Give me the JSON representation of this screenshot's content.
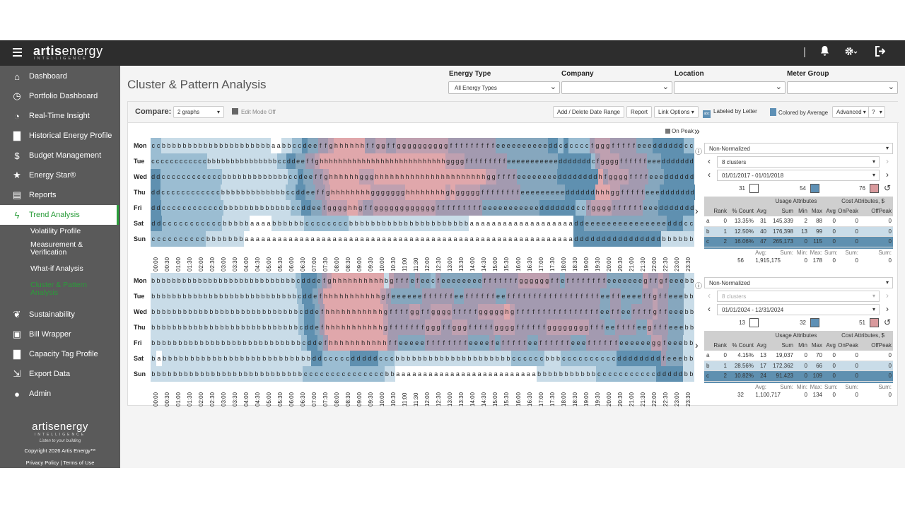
{
  "topbar": {
    "logo_bold": "artis",
    "logo_rest": "energy",
    "logo_sub": "INTELLIGENCE",
    "divider": "|",
    "bell_icon": "bell-icon",
    "gear_icon": "gear-icon",
    "logout_icon": "logout-icon"
  },
  "sidebar": {
    "items": [
      {
        "label": "Dashboard",
        "icon": "⌂"
      },
      {
        "label": "Portfolio Dashboard",
        "icon": "◷"
      },
      {
        "label": "Real-Time Insight",
        "icon": "◔"
      },
      {
        "label": "Historical Energy Profile",
        "icon": "▇"
      },
      {
        "label": "Budget Management",
        "icon": "$"
      },
      {
        "label": "Energy Star®",
        "icon": "★"
      },
      {
        "label": "Reports",
        "icon": "▤"
      },
      {
        "label": "Trend Analysis",
        "icon": "ϟ"
      }
    ],
    "sub_items": [
      "Volatility Profile",
      "Measurement & Verification",
      "What-if Analysis",
      "Cluster & Pattern Analysis"
    ],
    "items2": [
      {
        "label": "Sustainability",
        "icon": "❦"
      },
      {
        "label": "Bill Wrapper",
        "icon": "▣"
      },
      {
        "label": "Capacity Tag Profile",
        "icon": "▇"
      },
      {
        "label": "Export Data",
        "icon": "⇲"
      },
      {
        "label": "Admin",
        "icon": "●"
      }
    ],
    "footer_logo": "artisenergy",
    "footer_sub": "INTELLIGENCE",
    "tagline": "Listen to your building",
    "copyright": "Copyright 2026 Artis Energy™",
    "privacy": "Privacy Policy",
    "sep": "|",
    "terms": "Terms of Use"
  },
  "page": {
    "title": "Cluster & Pattern Analysis"
  },
  "filters": {
    "energy_type_label": "Energy Type",
    "energy_type_value": "All Energy Types",
    "company_label": "Company",
    "company_value": "",
    "location_label": "Location",
    "location_value": "",
    "meter_group_label": "Meter Group",
    "meter_group_value": ""
  },
  "toolbar": {
    "compare_label": "Compare:",
    "compare_value": "2 graphs",
    "edit_mode": "Edit Mode Off",
    "add_delete": "Add / Delete Date Range",
    "report": "Report",
    "link_options": "Link Options ▾",
    "abc_icon": "abc",
    "labeled": "Labeled by Letter",
    "colored": "Colored by Average",
    "advanced": "Advanced ▾",
    "help": "?",
    "help_caret": "▾"
  },
  "legend": {
    "on_peak": "On Peak",
    "collapse": "»"
  },
  "days": [
    "Mon",
    "Tue",
    "Wed",
    "Thu",
    "Fri",
    "Sat",
    "Sun"
  ],
  "times": [
    "00:00",
    "00:30",
    "01:00",
    "01:30",
    "02:00",
    "02:30",
    "03:00",
    "03:30",
    "04:00",
    "04:30",
    "05:00",
    "05:30",
    "06:00",
    "06:30",
    "07:00",
    "07:30",
    "08:00",
    "08:30",
    "09:00",
    "09:30",
    "10:00",
    "10:30",
    "11:00",
    "11:30",
    "12:00",
    "12:30",
    "13:00",
    "13:30",
    "14:00",
    "14:30",
    "15:00",
    "15:30",
    "16:00",
    "16:30",
    "17:00",
    "17:30",
    "18:00",
    "18:30",
    "19:00",
    "19:30",
    "20:00",
    "20:30",
    "21:00",
    "21:30",
    "22:00",
    "22:30",
    "23:00",
    "23:30"
  ],
  "colors": {
    "a": "#ffffff",
    "b": "#c9dce8",
    "c": "#9bbdd2",
    "d": "#5f90b0",
    "e": "#86a7be",
    "f": "#a39ab0",
    "g": "#bfa0b0",
    "h": "#e0a7ab"
  },
  "graph1": {
    "rows": [
      "ccbbbbbbbbbbbbbbbbbbbbbaabbccdeeffghhhhhhffggffggggggggggfffffffffeeeeeeeeeeddcdccccfgggfffffeeeddddddcc",
      "ccccccccccccbbbbbbbbbbbbbbbccddeeffghhhhhhhhhhhhhhhhhhhhhhhhhhhggggfffffffffeeeeeeeeeeedddddddcfggggffffffeeeddddddd",
      "ddccccccccccccbbbbbbbbbbbbbccdeeffghhhhhhggghhhhhhhhhhhhhhhhhhhhhhggffffeeeeeeeeddddddddhfggggffffeeedddddd",
      "ddccccccccccccbbbbbbbbbbbbbccddeeffghhhhhhhhggggggghhhhhhhhghgggggffffffffeeeeeeeeeddddddhhhggfffffeeeddddddd",
      "ddccccccccccccbbbbbbbbbbbbbccddeefgggghhgffggggggggggggfffffffffeeeeeeeeeeedddddddccfggggffffffeeeddddddd",
      "ddcccccccccccbbbbbaaaabbbbbbccccccccbbbbbbbbbbbbbbbbbbbbbbaaaaaaaaaaaaaaaaaaaddeeeeeeeeeeeeeeedddcc",
      "ccccccccccbbbbbbbaaaaaaaaaaaaaaaaaaaaaaaaaaaaaaaaaaaaaaaaaaaaaaaaaaaaaaaaaaaaddddddddddddddddbbbbbb"
    ],
    "select_norm": "Non-Normalized",
    "select_clusters": "8 clusters",
    "date_range": "01/01/2017 - 01/01/2018",
    "range_low": "31",
    "range_mid": "54",
    "range_high": "76",
    "usage_hdr": "Usage Attributes",
    "cost_hdr": "Cost Attributes, $",
    "cols": [
      "Rank",
      "% Count",
      "Avg",
      "Sum",
      "Min",
      "Max",
      "Avg",
      "OnPeak",
      "OffPeak"
    ],
    "clusters": [
      {
        "letter": "a",
        "rank": "0",
        "pct": "13.35%",
        "avg": "31",
        "sum": "145,339",
        "min": "2",
        "max": "88",
        "cavg": "0",
        "onpeak": "0",
        "offpeak": "0"
      },
      {
        "letter": "b",
        "rank": "1",
        "pct": "12.50%",
        "avg": "40",
        "sum": "176,398",
        "min": "13",
        "max": "99",
        "cavg": "0",
        "onpeak": "0",
        "offpeak": "0"
      },
      {
        "letter": "c",
        "rank": "2",
        "pct": "16.06%",
        "avg": "47",
        "sum": "265,173",
        "min": "0",
        "max": "115",
        "cavg": "0",
        "onpeak": "0",
        "offpeak": "0"
      }
    ],
    "totals_labels": [
      "Avg:",
      "Sum:",
      "Min:",
      "Max:",
      "Sum:",
      "Sum:",
      "Sum:"
    ],
    "totals": [
      "56",
      "1,915,175",
      "0",
      "178",
      "0",
      "0",
      "0"
    ]
  },
  "graph2": {
    "rows": [
      "bbbbbbbbbbbbbbbbbbbbbbbbbbbbcdddefghhhhhhhhhhbgfffefeecfeeeeeeeefffffffggggggffeffffffffeeeeeeegffgfeeebb",
      "bbbbbbbbbbbbbbbbbbbbbbbbbbbbcddefhhhhhhhhhhhgfeeeeeeffffffeeffffffeeffffffffffffffffffeeffeeeeffgffeeebb",
      "bbbbbbbbbbbbbbbbbbbbbbbbbbbbcddefhhhhhhhhhhhgffffggffggggfffffggggghgffffffffffffffffeeffeeffffgffeeebb",
      "bbbbbbbbbbbbbbbbbbbbbbbbbbbbcddefhhhhhhhhhhhgfffffffgggffgggfffffggggffffffggggggggfffeeffffeegfffeeebb",
      "bbbbbbbbbbbbbbbbbbbbbbbbbbbbcddefhhhhhhhhhhhffeeeeeffffffffeeeefefffffeeffffffeeeffffffeeeeeeggfeeebb",
      "babbbbbbbbbbbbbbbbbbbbbbbbbbbddcccccdddddcccbbbbbbbbbbbbbbbbbbbbbccccccbbbccccccccccddddddddfeeebb",
      "bbbbbbbbbbbbbbbbbbbbbbbbbbbbcccccccccccccccbbaaaaaaaaaaaaaaaaaaaaaaaaaabbbbbbbbbbbcccccccccccdddddbb"
    ],
    "select_norm": "Non-Normalized",
    "select_clusters": "8 clusters",
    "date_range": "01/01/2024 - 12/31/2024",
    "range_low": "13",
    "range_mid": "32",
    "range_high": "51",
    "usage_hdr": "Usage Attributes",
    "cost_hdr": "Cost Attributes, $",
    "cols": [
      "Rank",
      "% Count",
      "Avg",
      "Sum",
      "Min",
      "Max",
      "Avg",
      "OnPeak",
      "OffPeak"
    ],
    "clusters": [
      {
        "letter": "a",
        "rank": "0",
        "pct": "4.15%",
        "avg": "13",
        "sum": "19,037",
        "min": "0",
        "max": "70",
        "cavg": "0",
        "onpeak": "0",
        "offpeak": "0"
      },
      {
        "letter": "b",
        "rank": "1",
        "pct": "28.56%",
        "avg": "17",
        "sum": "172,362",
        "min": "0",
        "max": "66",
        "cavg": "0",
        "onpeak": "0",
        "offpeak": "0"
      },
      {
        "letter": "c",
        "rank": "2",
        "pct": "10.82%",
        "avg": "24",
        "sum": "91,423",
        "min": "0",
        "max": "109",
        "cavg": "0",
        "onpeak": "0",
        "offpeak": "0"
      }
    ],
    "totals_labels": [
      "Avg:",
      "Sum:",
      "Min:",
      "Max:",
      "Sum:",
      "Sum:",
      "Sum:"
    ],
    "totals": [
      "32",
      "1,100,717",
      "0",
      "134",
      "0",
      "0",
      "0"
    ]
  }
}
